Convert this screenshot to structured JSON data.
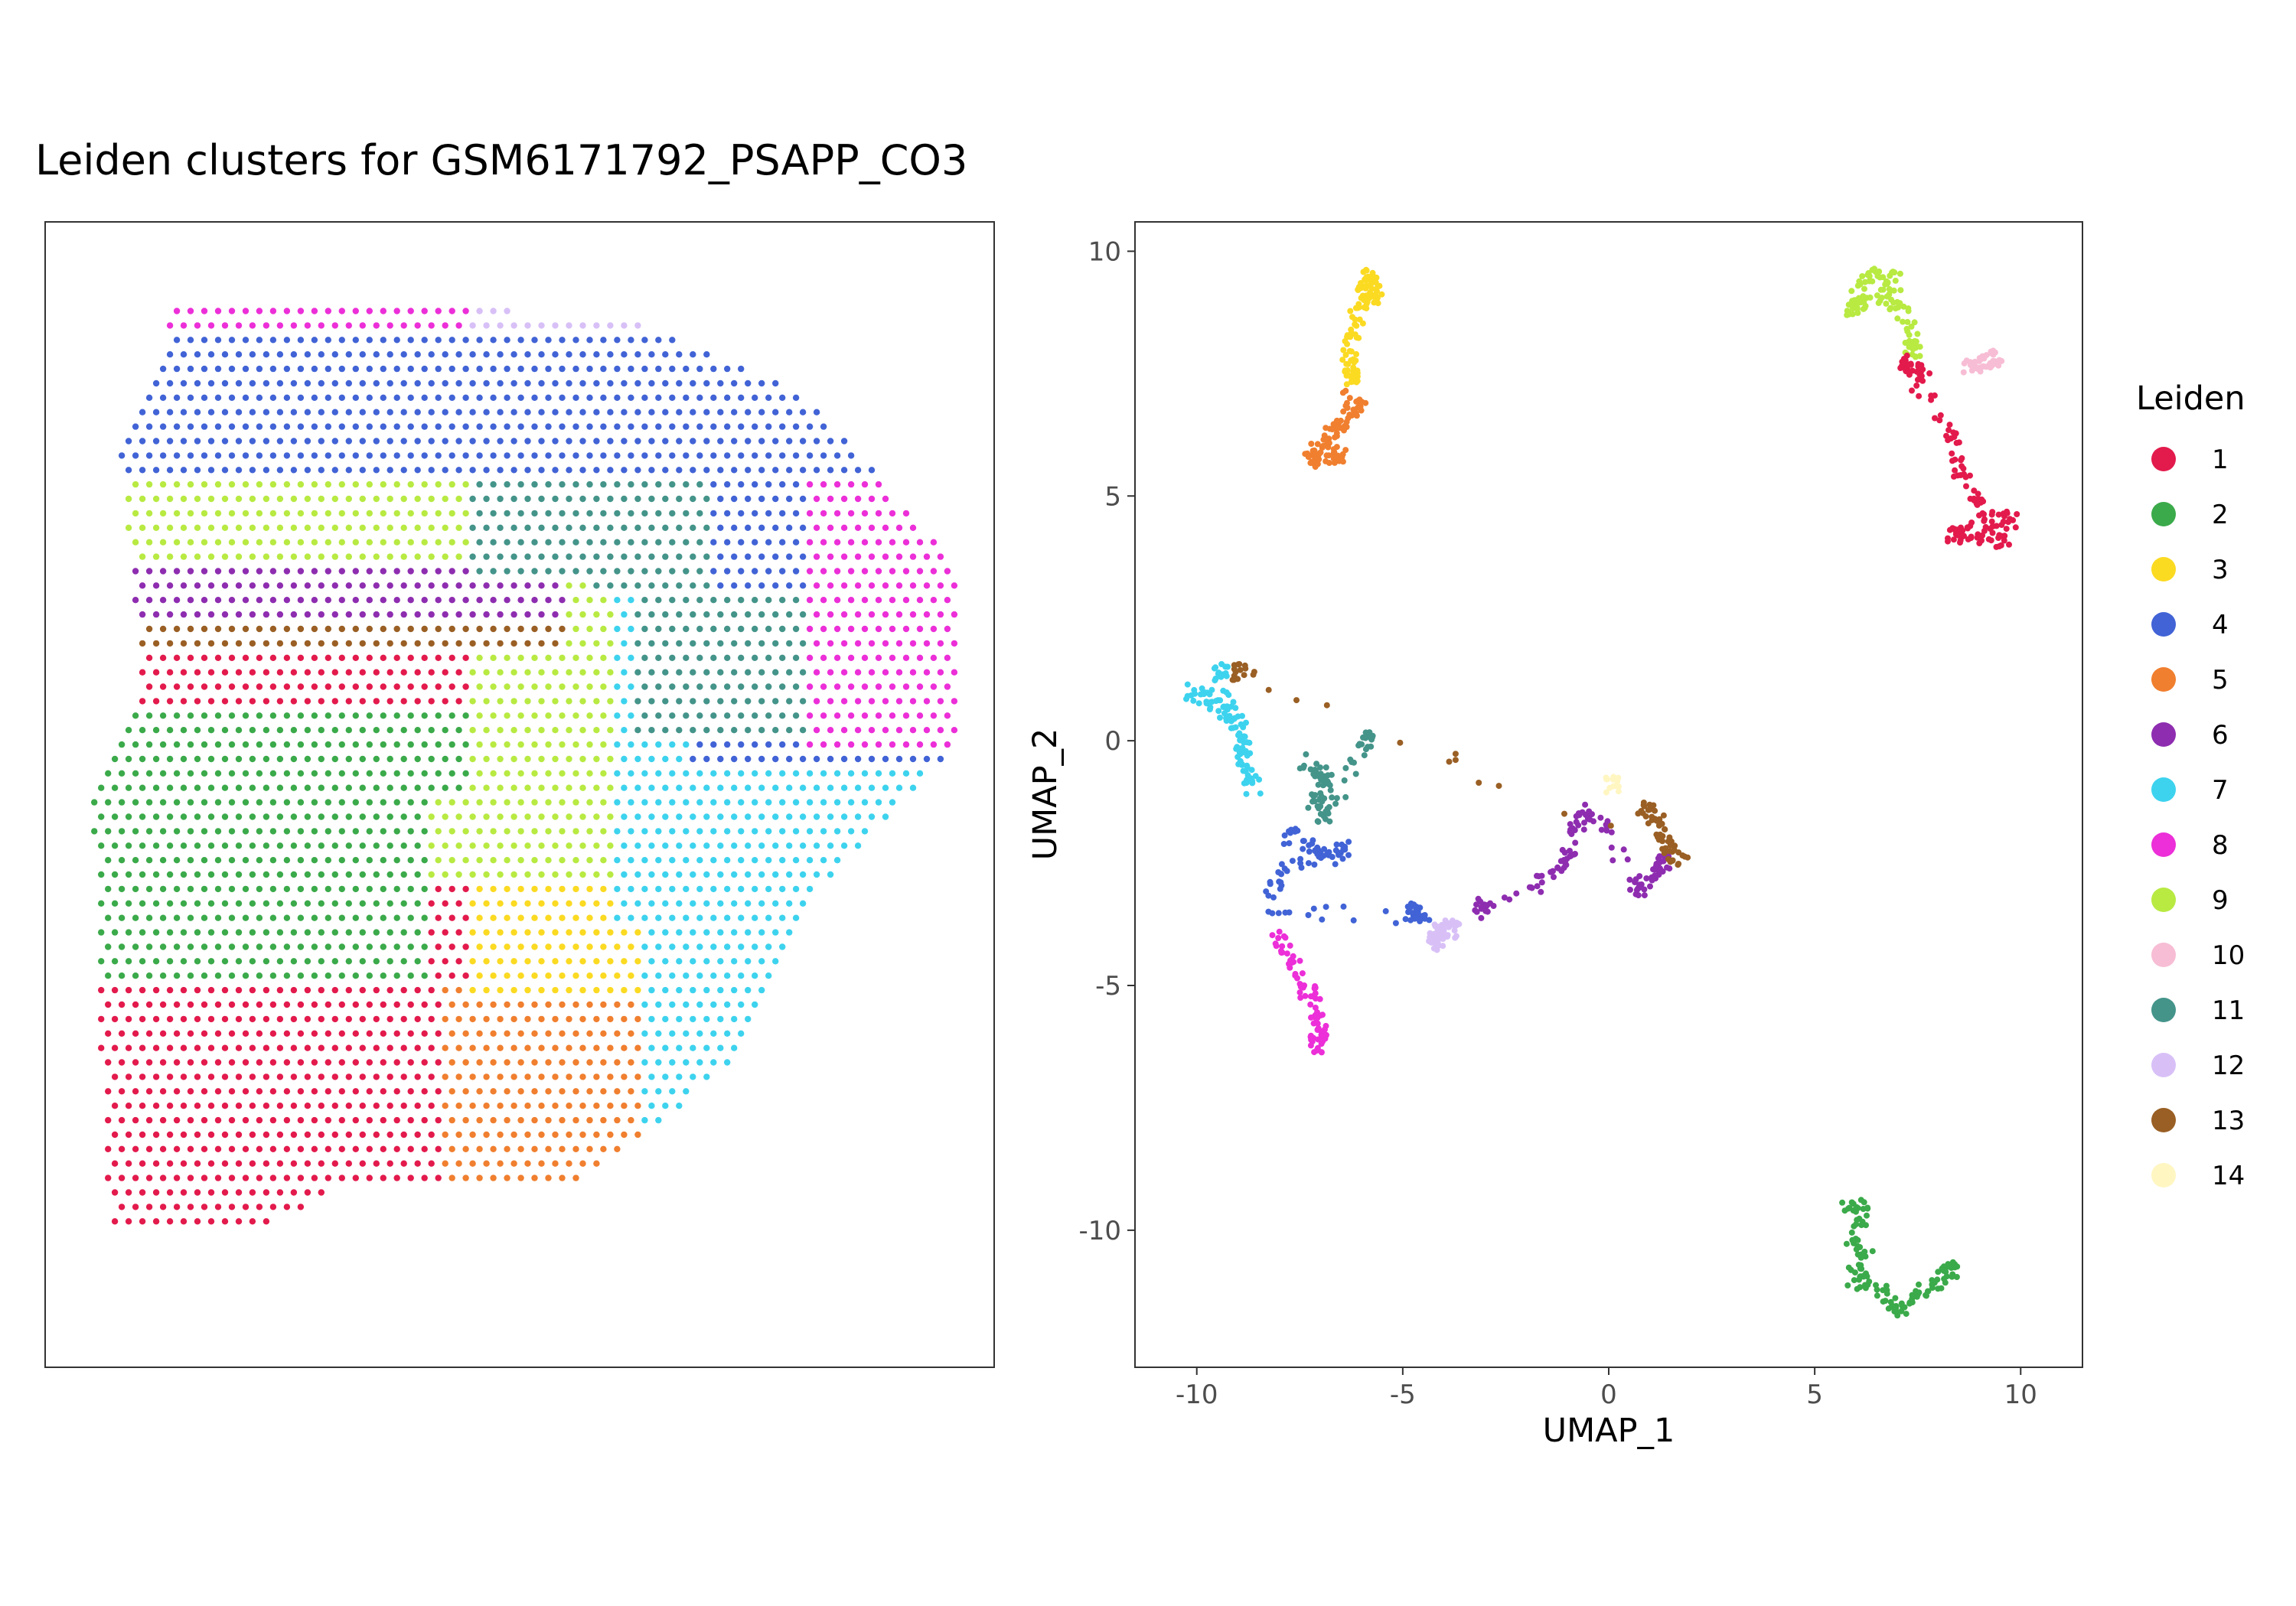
{
  "chart_data": [
    {
      "type": "scatter",
      "panel": "spatial",
      "title": "Leiden clusters for GSM6171792_PSAPP_CO3",
      "description_of_regions": [
        {
          "cluster": "4",
          "region": "upper band"
        },
        {
          "cluster": "8",
          "region": "upper-right rim"
        },
        {
          "cluster": "9",
          "region": "upper-left and center band"
        },
        {
          "cluster": "6",
          "region": "upper-left interior"
        },
        {
          "cluster": "13",
          "region": "thin band left"
        },
        {
          "cluster": "11",
          "region": "right-middle band"
        },
        {
          "cluster": "2",
          "region": "large left block"
        },
        {
          "cluster": "1",
          "region": "lower-left and center"
        },
        {
          "cluster": "3",
          "region": "center-right"
        },
        {
          "cluster": "7",
          "region": "lower right"
        },
        {
          "cluster": "5",
          "region": "bottom center"
        },
        {
          "cluster": "10",
          "region": "scattered center"
        },
        {
          "cluster": "12",
          "region": "upper rim"
        },
        {
          "cluster": "14",
          "region": "scattered"
        }
      ]
    },
    {
      "type": "scatter",
      "panel": "umap",
      "xlabel": "UMAP_1",
      "ylabel": "UMAP_2",
      "xlim": [
        -11.5,
        11.5
      ],
      "ylim": [
        -12.8,
        10.6
      ],
      "xticks": [
        -10,
        -5,
        0,
        5,
        10
      ],
      "yticks": [
        -10,
        -5,
        0,
        5,
        10
      ],
      "xtick_labels": [
        "-10",
        "-5",
        "0",
        "5",
        "10"
      ],
      "ytick_labels": [
        "-10",
        "-5",
        "0",
        "5",
        "10"
      ],
      "grid": false,
      "clusters": [
        {
          "name": "3",
          "points": [
            [
              -5.9,
              9.5
            ],
            [
              -5.7,
              9.4
            ],
            [
              -6.0,
              9.2
            ],
            [
              -5.6,
              9.1
            ],
            [
              -6.1,
              8.8
            ],
            [
              -6.2,
              8.3
            ],
            [
              -6.3,
              7.8
            ],
            [
              -6.2,
              7.4
            ]
          ]
        },
        {
          "name": "5",
          "points": [
            [
              -6.3,
              7.0
            ],
            [
              -6.0,
              6.8
            ],
            [
              -6.5,
              6.5
            ],
            [
              -6.8,
              6.2
            ],
            [
              -7.1,
              6.0
            ],
            [
              -6.4,
              5.8
            ],
            [
              -7.2,
              5.7
            ]
          ]
        },
        {
          "name": "9",
          "points": [
            [
              6.0,
              9.3
            ],
            [
              6.5,
              9.5
            ],
            [
              7.0,
              9.4
            ],
            [
              6.2,
              9.0
            ],
            [
              5.8,
              8.8
            ],
            [
              6.8,
              9.1
            ],
            [
              7.2,
              8.6
            ],
            [
              7.4,
              8.0
            ]
          ]
        },
        {
          "name": "1",
          "points": [
            [
              7.3,
              7.6
            ],
            [
              7.7,
              7.5
            ],
            [
              7.1,
              7.8
            ],
            [
              8.2,
              6.4
            ],
            [
              8.5,
              5.6
            ],
            [
              8.9,
              5.0
            ],
            [
              9.2,
              4.5
            ],
            [
              9.8,
              4.6
            ],
            [
              9.5,
              4.0
            ],
            [
              8.7,
              4.3
            ],
            [
              8.4,
              4.2
            ]
          ]
        },
        {
          "name": "10",
          "points": [
            [
              8.6,
              7.6
            ],
            [
              9.0,
              7.7
            ],
            [
              9.4,
              7.8
            ]
          ]
        },
        {
          "name": "7",
          "points": [
            [
              -10.2,
              1.0
            ],
            [
              -9.8,
              0.9
            ],
            [
              -9.4,
              0.7
            ],
            [
              -9.0,
              0.4
            ],
            [
              -8.9,
              -0.1
            ],
            [
              -8.8,
              -0.6
            ],
            [
              -8.6,
              -1.0
            ],
            [
              -9.4,
              1.4
            ]
          ]
        },
        {
          "name": "11",
          "points": [
            [
              -7.4,
              -0.4
            ],
            [
              -7.0,
              -0.7
            ],
            [
              -6.8,
              -0.9
            ],
            [
              -7.2,
              -1.3
            ],
            [
              -6.8,
              -1.6
            ],
            [
              -5.9,
              0.0
            ]
          ]
        },
        {
          "name": "4",
          "points": [
            [
              -7.8,
              -1.9
            ],
            [
              -7.3,
              -2.2
            ],
            [
              -6.8,
              -2.4
            ],
            [
              -6.3,
              -2.1
            ],
            [
              -8.1,
              -2.8
            ],
            [
              -8.2,
              -3.5
            ],
            [
              -4.4,
              -3.6
            ],
            [
              -4.8,
              -3.5
            ]
          ]
        },
        {
          "name": "8",
          "points": [
            [
              -8.1,
              -3.9
            ],
            [
              -7.8,
              -4.4
            ],
            [
              -7.5,
              -4.9
            ],
            [
              -7.2,
              -5.3
            ],
            [
              -7.0,
              -5.8
            ],
            [
              -7.1,
              -6.2
            ]
          ]
        },
        {
          "name": "12",
          "points": [
            [
              -4.4,
              -3.8
            ],
            [
              -4.0,
              -3.9
            ],
            [
              -3.7,
              -3.7
            ],
            [
              -4.2,
              -4.1
            ]
          ]
        },
        {
          "name": "6",
          "points": [
            [
              -3.2,
              -3.5
            ],
            [
              -2.9,
              -3.3
            ],
            [
              -1.3,
              -2.8
            ],
            [
              -1.0,
              -2.2
            ],
            [
              -0.7,
              -1.7
            ],
            [
              -0.4,
              -1.4
            ],
            [
              0.7,
              -3.1
            ],
            [
              1.0,
              -2.8
            ],
            [
              1.3,
              -2.5
            ]
          ]
        },
        {
          "name": "13",
          "points": [
            [
              0.8,
              -1.4
            ],
            [
              1.1,
              -1.5
            ],
            [
              1.3,
              -1.9
            ],
            [
              1.5,
              -2.3
            ],
            [
              1.8,
              -2.4
            ],
            [
              -9.0,
              1.4
            ]
          ]
        },
        {
          "name": "14",
          "points": [
            [
              0.1,
              -0.9
            ]
          ]
        },
        {
          "name": "2",
          "points": [
            [
              5.7,
              -9.6
            ],
            [
              6.2,
              -9.4
            ],
            [
              5.9,
              -10.2
            ],
            [
              6.3,
              -10.6
            ],
            [
              5.9,
              -11.0
            ],
            [
              6.6,
              -11.2
            ],
            [
              7.0,
              -11.6
            ],
            [
              7.5,
              -11.4
            ],
            [
              8.0,
              -11.0
            ],
            [
              8.3,
              -10.8
            ]
          ]
        }
      ]
    }
  ],
  "legend": {
    "title": "Leiden",
    "entries": [
      {
        "label": "1",
        "color": "#E31A4C"
      },
      {
        "label": "2",
        "color": "#3BAA4A"
      },
      {
        "label": "3",
        "color": "#FBDA22"
      },
      {
        "label": "4",
        "color": "#4163D6"
      },
      {
        "label": "5",
        "color": "#F07F2F"
      },
      {
        "label": "6",
        "color": "#8E2DB0"
      },
      {
        "label": "7",
        "color": "#3DD3EE"
      },
      {
        "label": "8",
        "color": "#EC2FD8"
      },
      {
        "label": "9",
        "color": "#B8EA42"
      },
      {
        "label": "10",
        "color": "#F7BDD4"
      },
      {
        "label": "11",
        "color": "#44948A"
      },
      {
        "label": "12",
        "color": "#D8C0F7"
      },
      {
        "label": "13",
        "color": "#9A5F24"
      },
      {
        "label": "14",
        "color": "#FFF6C2"
      }
    ]
  }
}
